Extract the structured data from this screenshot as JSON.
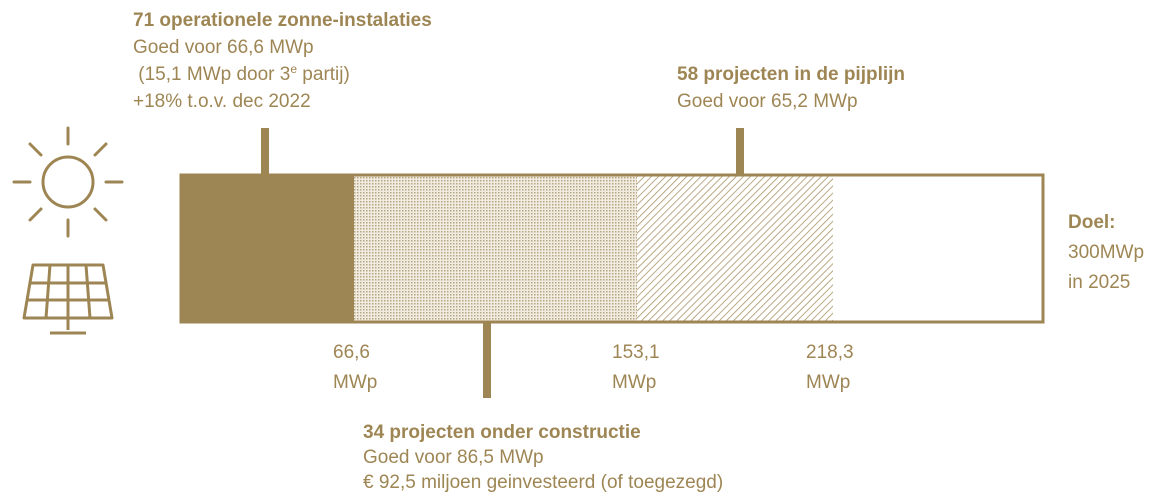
{
  "callouts": [
    {
      "title": "71 operationele zonne-instalaties",
      "line1": "Goed voor 66,6 MWp",
      "line2": {
        "before": " (15,1 MWp door 3",
        "sup": "e",
        "after": " partij)"
      },
      "line3": "+18% t.o.v. dec 2022"
    },
    {
      "title": "58 projecten in de pijplijn",
      "line1": "Goed voor 65,2 MWp"
    },
    {
      "title": "34 projecten onder constructie",
      "line1": "Goed voor 86,5 MWp",
      "line2": "€ 92,5 miljoen geinvesteerd (of toegezegd)"
    }
  ],
  "scale_labels": [
    {
      "value": "66,6",
      "unit": "MWp"
    },
    {
      "value": "153,1",
      "unit": "MWp"
    },
    {
      "value": "218,3",
      "unit": "MWp"
    }
  ],
  "goal": {
    "title": "Doel:",
    "line1": "300MWp",
    "line2": "in 2025"
  }
}
